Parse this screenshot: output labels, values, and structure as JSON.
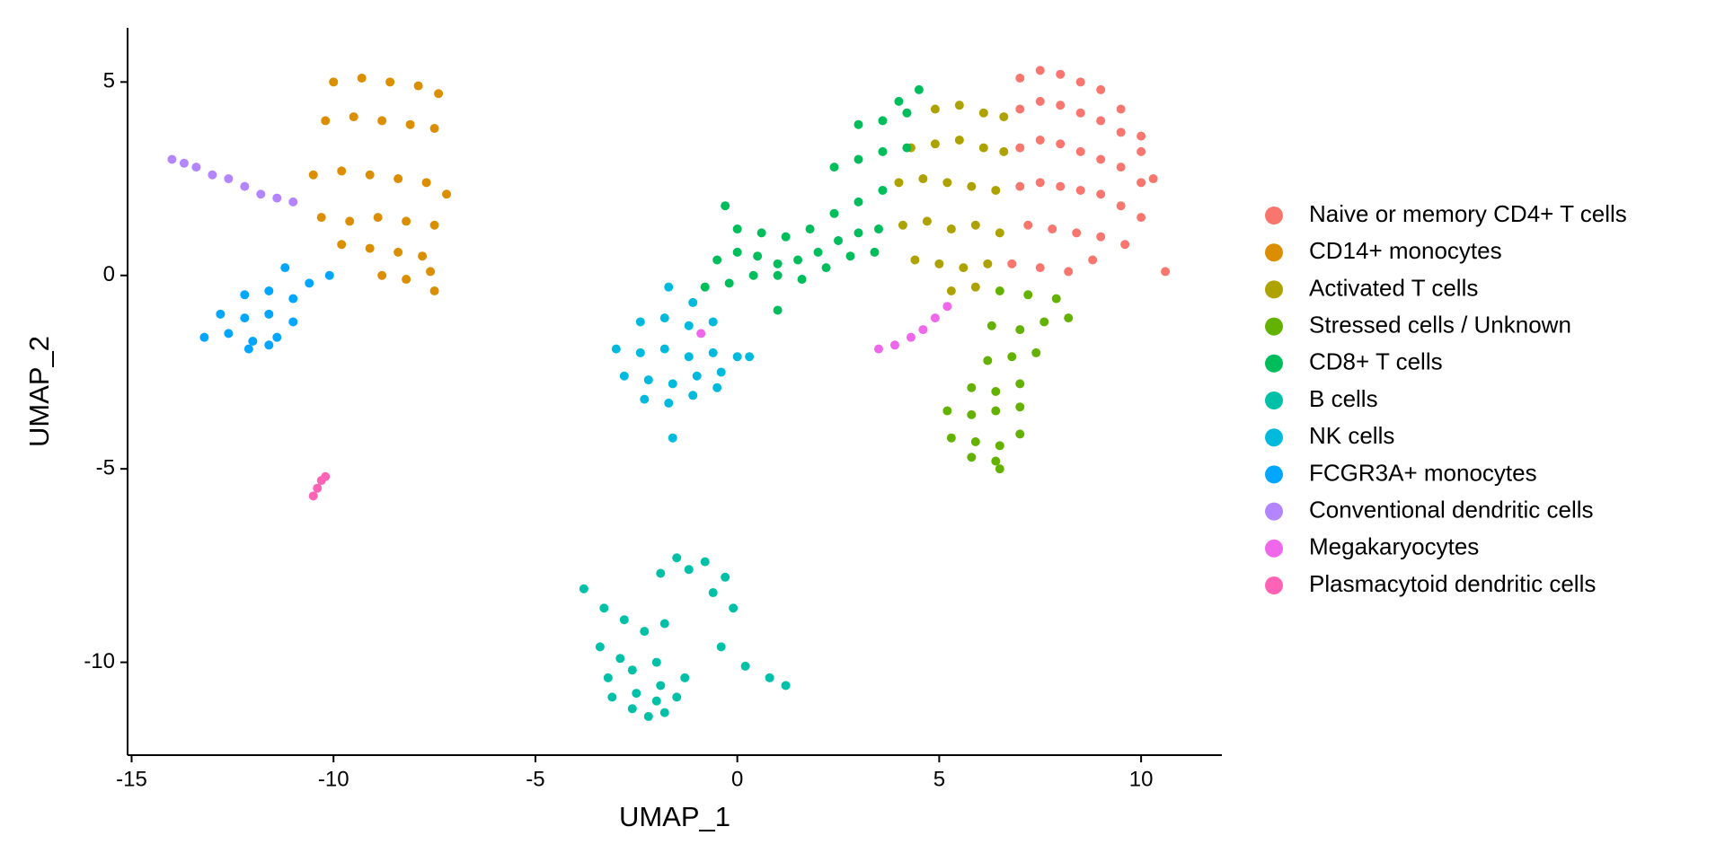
{
  "chart_data": {
    "type": "scatter",
    "x_label": "UMAP_1",
    "y_label": "UMAP_2",
    "xlim": [
      -15.1,
      12
    ],
    "ylim": [
      -12.4,
      6.4
    ],
    "xticks": [
      -15,
      -10,
      -5,
      0,
      5,
      10
    ],
    "yticks": [
      -10,
      -5,
      0,
      5
    ],
    "legend": "right",
    "series": [
      {
        "name": "Naive or memory CD4+ T cells",
        "color": "#F8766D",
        "x": [
          7,
          7.5,
          8,
          8.5,
          9,
          9.5,
          10,
          7,
          7.5,
          8,
          8.5,
          9,
          9.5,
          10,
          10.3,
          7,
          7.5,
          8,
          8.5,
          9,
          9.5,
          10,
          7,
          7.5,
          8,
          8.5,
          9,
          9.5,
          10,
          7.2,
          7.8,
          8.4,
          9,
          9.6,
          6.8,
          7.5,
          8.2,
          8.8,
          10.6
        ],
        "y": [
          5.1,
          5.3,
          5.2,
          5,
          4.8,
          4.3,
          3.6,
          4.3,
          4.5,
          4.4,
          4.2,
          4,
          3.7,
          3.2,
          2.5,
          3.3,
          3.5,
          3.4,
          3.2,
          3,
          2.8,
          2.4,
          2.3,
          2.4,
          2.3,
          2.2,
          2.1,
          1.8,
          1.5,
          1.3,
          1.2,
          1.1,
          1,
          0.8,
          0.3,
          0.2,
          0.1,
          0.4,
          0.1
        ]
      },
      {
        "name": "CD14+ monocytes",
        "color": "#DB8E00",
        "x": [
          -10,
          -9.3,
          -8.6,
          -7.9,
          -7.4,
          -10.2,
          -9.5,
          -8.8,
          -8.1,
          -7.5,
          -10.5,
          -9.8,
          -9.1,
          -8.4,
          -7.7,
          -7.2,
          -10.3,
          -9.6,
          -8.9,
          -8.2,
          -7.5,
          -9.8,
          -9.1,
          -8.4,
          -7.8,
          -8.8,
          -8.2,
          -7.6,
          -7.5
        ],
        "y": [
          5,
          5.1,
          5,
          4.9,
          4.7,
          4,
          4.1,
          4,
          3.9,
          3.8,
          2.6,
          2.7,
          2.6,
          2.5,
          2.4,
          2.1,
          1.5,
          1.4,
          1.5,
          1.4,
          1.3,
          0.8,
          0.7,
          0.6,
          0.5,
          0,
          -0.1,
          0.1,
          -0.4
        ]
      },
      {
        "name": "Activated T cells",
        "color": "#AEA200",
        "x": [
          4.9,
          5.5,
          6.1,
          6.6,
          4.3,
          4.9,
          5.5,
          6.1,
          6.6,
          4,
          4.6,
          5.2,
          5.8,
          6.4,
          4.1,
          4.7,
          5.3,
          5.9,
          6.5,
          4.4,
          5,
          5.6,
          6.2,
          5.3,
          5.9
        ],
        "y": [
          4.3,
          4.4,
          4.2,
          4.1,
          3.3,
          3.4,
          3.5,
          3.3,
          3.2,
          2.4,
          2.5,
          2.4,
          2.3,
          2.2,
          1.3,
          1.4,
          1.2,
          1.3,
          1.1,
          0.4,
          0.3,
          0.2,
          0.3,
          -0.4,
          -0.3
        ]
      },
      {
        "name": "Stressed cells / Unknown",
        "color": "#64B200",
        "x": [
          6.5,
          7.2,
          7.9,
          6.3,
          7,
          7.6,
          8.2,
          6.2,
          6.8,
          7.4,
          5.8,
          6.4,
          7,
          5.2,
          5.8,
          6.4,
          7,
          5.3,
          5.9,
          6.5,
          7,
          5.8,
          6.4,
          6.5
        ],
        "y": [
          -0.4,
          -0.5,
          -0.6,
          -1.3,
          -1.4,
          -1.2,
          -1.1,
          -2.2,
          -2.1,
          -2,
          -2.9,
          -3,
          -2.8,
          -3.5,
          -3.6,
          -3.5,
          -3.4,
          -4.2,
          -4.3,
          -4.4,
          -4.1,
          -4.7,
          -4.8,
          -5
        ]
      },
      {
        "name": "CD8+ T cells",
        "color": "#00BD5C",
        "x": [
          -0.5,
          0,
          0.5,
          1,
          1.5,
          2,
          2.5,
          3,
          3.5,
          -0.8,
          -0.2,
          0.4,
          1,
          1.6,
          2.2,
          2.8,
          3.4,
          0,
          0.6,
          1.2,
          1.8,
          2.4,
          3,
          3.6,
          2.4,
          3,
          3.6,
          4.2,
          3,
          3.6,
          4.2,
          4,
          4.5,
          -0.3,
          1
        ],
        "y": [
          0.4,
          0.6,
          0.5,
          0.3,
          0.4,
          0.6,
          0.9,
          1.1,
          1.2,
          -0.3,
          -0.2,
          0,
          0,
          -0.1,
          0.2,
          0.5,
          0.6,
          1.2,
          1.1,
          1,
          1.2,
          1.6,
          1.9,
          2.2,
          2.8,
          3,
          3.2,
          3.3,
          3.9,
          4,
          4.2,
          4.5,
          4.8,
          1.8,
          -0.9
        ]
      },
      {
        "name": "B cells",
        "color": "#00C1A7",
        "x": [
          -3.8,
          -3.3,
          -2.8,
          -2.3,
          -1.8,
          -3.4,
          -2.9,
          -1.5,
          -0.8,
          -0.3,
          -1.9,
          -1.2,
          -0.6,
          -0.1,
          -3.2,
          -2.6,
          -2,
          -0.4,
          0.2,
          0.8,
          1.2,
          -3.1,
          -2.5,
          -1.9,
          -1.3,
          -2.6,
          -2,
          -1.5,
          -2.2,
          -1.8
        ],
        "y": [
          -8.1,
          -8.6,
          -8.9,
          -9.2,
          -9.0,
          -9.6,
          -9.9,
          -7.3,
          -7.4,
          -7.8,
          -7.7,
          -7.6,
          -8.2,
          -8.6,
          -10.4,
          -10.2,
          -10.0,
          -9.6,
          -10.1,
          -10.4,
          -10.6,
          -10.9,
          -10.8,
          -10.6,
          -10.4,
          -11.2,
          -11.0,
          -10.9,
          -11.4,
          -11.3
        ]
      },
      {
        "name": "NK cells",
        "color": "#00BADE",
        "x": [
          -1.7,
          -1.1,
          -2.4,
          -1.8,
          -1.2,
          -0.6,
          -3,
          -2.4,
          -1.8,
          -1.2,
          -0.6,
          0,
          -2.8,
          -2.2,
          -1.6,
          -1,
          -0.4,
          0.3,
          -2.3,
          -1.7,
          -1.1,
          -0.5,
          -1.6
        ],
        "y": [
          -0.3,
          -0.7,
          -1.2,
          -1.1,
          -1.3,
          -1.2,
          -1.9,
          -2,
          -1.9,
          -2.1,
          -2,
          -2.1,
          -2.6,
          -2.7,
          -2.8,
          -2.6,
          -2.5,
          -2.1,
          -3.2,
          -3.3,
          -3.1,
          -2.9,
          -4.2
        ]
      },
      {
        "name": "FCGR3A+ monocytes",
        "color": "#00A6FF",
        "x": [
          -11.2,
          -10.6,
          -10.1,
          -12.2,
          -11.6,
          -11,
          -12.8,
          -12.2,
          -11.6,
          -11,
          -13.2,
          -12.6,
          -12,
          -11.4,
          -12.1,
          -11.6
        ],
        "y": [
          0.2,
          -0.2,
          0,
          -0.5,
          -0.4,
          -0.6,
          -1,
          -1.1,
          -1,
          -1.2,
          -1.6,
          -1.5,
          -1.7,
          -1.6,
          -1.9,
          -1.8
        ]
      },
      {
        "name": "Conventional dendritic cells",
        "color": "#B385FF",
        "x": [
          -14,
          -13.7,
          -13.4,
          -13,
          -12.6,
          -12.2,
          -11.8,
          -11.4,
          -11
        ],
        "y": [
          3,
          2.9,
          2.8,
          2.6,
          2.5,
          2.3,
          2.1,
          2,
          1.9
        ]
      },
      {
        "name": "Megakaryocytes",
        "color": "#EF67EB",
        "x": [
          3.5,
          3.9,
          4.3,
          4.6,
          4.9,
          5.2,
          -0.9
        ],
        "y": [
          -1.9,
          -1.8,
          -1.6,
          -1.4,
          -1.1,
          -0.8,
          -1.5
        ]
      },
      {
        "name": "Plasmacytoid dendritic cells",
        "color": "#FF63B6",
        "x": [
          -10.5,
          -10.4,
          -10.3,
          -10.2
        ],
        "y": [
          -5.7,
          -5.5,
          -5.3,
          -5.2
        ]
      }
    ]
  }
}
